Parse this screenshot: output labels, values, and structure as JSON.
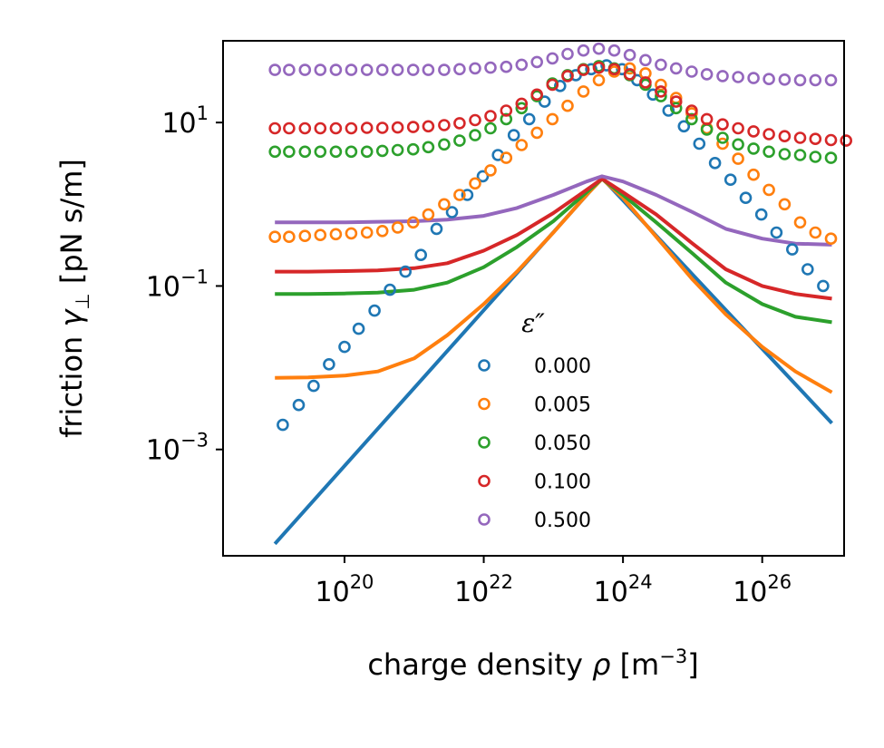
{
  "chart_data": {
    "type": "scatter",
    "xlabel_text": "charge density ",
    "xlabel_sym": "ρ",
    "xlabel_unit": " [m",
    "xlabel_unit_exp": "−3",
    "xlabel_unit_end": "]",
    "ylabel_text": "friction ",
    "ylabel_sym": "γ",
    "ylabel_sub": "⊥",
    "ylabel_unit": " [pN s/m]",
    "xscale": "log",
    "yscale": "log",
    "xlim": [
      1.8e+18,
      1.5e+27
    ],
    "ylim": [
      5e-05,
      100
    ],
    "x_ticks": [
      {
        "value": 1e+20,
        "base": "10",
        "exp": "20"
      },
      {
        "value": 1e+22,
        "base": "10",
        "exp": "22"
      },
      {
        "value": 1e+24,
        "base": "10",
        "exp": "24"
      },
      {
        "value": 1e+26,
        "base": "10",
        "exp": "26"
      }
    ],
    "y_ticks": [
      {
        "value": 0.001,
        "base": "10",
        "exp": "−3"
      },
      {
        "value": 0.1,
        "base": "10",
        "exp": "−1"
      },
      {
        "value": 10,
        "base": "10",
        "exp": "1"
      }
    ],
    "legend": {
      "title": "ε″",
      "placement": "lower-center"
    },
    "grid": false,
    "series": [
      {
        "name": "0.000",
        "color": "#1f77b4",
        "line": {
          "x": [
            1e+19,
            5e+23,
            1e+27
          ],
          "y": [
            7e-05,
            2.1,
            0.0021
          ]
        },
        "markers": {
          "x": [
            1.3e+19,
            2.2e+19,
            3.6e+19,
            6e+19,
            1e+20,
            1.6e+20,
            2.7e+20,
            4.5e+20,
            7.5e+20,
            1.25e+21,
            2.1e+21,
            3.5e+21,
            5.8e+21,
            9.7e+21,
            1.6e+22,
            2.7e+22,
            4.5e+22,
            7.5e+22,
            1.25e+23,
            2.1e+23,
            3.5e+23,
            5.8e+23,
            9.7e+23,
            1.6e+24,
            2.7e+24,
            4.5e+24,
            7.5e+24,
            1.25e+25,
            2.1e+25,
            3.5e+25,
            5.8e+25,
            9.7e+25,
            1.6e+26,
            2.7e+26,
            4.5e+26,
            7.5e+26
          ],
          "y": [
            0.002,
            0.0035,
            0.006,
            0.011,
            0.018,
            0.03,
            0.05,
            0.09,
            0.15,
            0.24,
            0.5,
            0.8,
            1.3,
            2.2,
            4,
            7,
            11,
            18,
            28,
            38,
            45,
            50,
            45,
            33,
            22,
            14,
            9,
            5.5,
            3.2,
            2,
            1.2,
            0.75,
            0.45,
            0.28,
            0.16,
            0.1
          ]
        }
      },
      {
        "name": "0.005",
        "color": "#ff7f0e",
        "line": {
          "x": [
            1e+19,
            3e+19,
            1e+20,
            3e+20,
            1e+21,
            3e+21,
            1e+22,
            3e+22,
            1e+23,
            3e+23,
            5e+23,
            1e+24,
            3e+24,
            1e+25,
            3e+25,
            1e+26,
            3e+26,
            1e+27
          ],
          "y": [
            0.0075,
            0.0076,
            0.008,
            0.009,
            0.013,
            0.025,
            0.06,
            0.15,
            0.45,
            1.3,
            2.05,
            1.2,
            0.4,
            0.12,
            0.045,
            0.018,
            0.009,
            0.005
          ]
        },
        "markers": {
          "x": [
            1e+19,
            1.6e+19,
            2.7e+19,
            4.5e+19,
            7.5e+19,
            1.25e+20,
            2.1e+20,
            3.5e+20,
            5.8e+20,
            9.7e+20,
            1.6e+21,
            2.7e+21,
            4.5e+21,
            7.5e+21,
            1.25e+22,
            2.1e+22,
            3.5e+22,
            5.8e+22,
            9.7e+22,
            1.6e+23,
            2.7e+23,
            4.5e+23,
            7.5e+23,
            1.25e+24,
            2.1e+24,
            3.5e+24,
            5.8e+24,
            9.7e+24,
            1.6e+25,
            2.7e+25,
            4.5e+25,
            7.5e+25,
            1.25e+26,
            2.1e+26,
            3.5e+26,
            5.8e+26,
            9.7e+26
          ],
          "y": [
            0.4,
            0.4,
            0.41,
            0.42,
            0.43,
            0.44,
            0.45,
            0.47,
            0.52,
            0.6,
            0.75,
            1,
            1.3,
            1.8,
            2.6,
            3.7,
            5.3,
            7.5,
            11,
            16,
            24,
            33,
            42,
            46,
            40,
            29,
            20,
            13,
            8.5,
            5.5,
            3.6,
            2.3,
            1.5,
            1,
            0.6,
            0.45,
            0.38
          ]
        }
      },
      {
        "name": "0.050",
        "color": "#2ca02c",
        "line": {
          "x": [
            1e+19,
            3e+19,
            1e+20,
            3e+20,
            1e+21,
            3e+21,
            1e+22,
            3e+22,
            1e+23,
            3e+23,
            5e+23,
            1e+24,
            3e+24,
            1e+25,
            3e+25,
            1e+26,
            3e+26,
            1e+27
          ],
          "y": [
            0.08,
            0.08,
            0.081,
            0.083,
            0.09,
            0.11,
            0.17,
            0.3,
            0.62,
            1.4,
            2.05,
            1.3,
            0.6,
            0.25,
            0.11,
            0.06,
            0.042,
            0.036
          ]
        },
        "markers": {
          "x": [
            1e+19,
            1.6e+19,
            2.7e+19,
            4.5e+19,
            7.5e+19,
            1.25e+20,
            2.1e+20,
            3.5e+20,
            5.8e+20,
            9.7e+20,
            1.6e+21,
            2.7e+21,
            4.5e+21,
            7.5e+21,
            1.25e+22,
            2.1e+22,
            3.5e+22,
            5.8e+22,
            9.7e+22,
            1.6e+23,
            2.7e+23,
            4.5e+23,
            7.5e+23,
            1.25e+24,
            2.1e+24,
            3.5e+24,
            5.8e+24,
            9.7e+24,
            1.6e+25,
            2.7e+25,
            4.5e+25,
            7.5e+25,
            1.25e+26,
            2.1e+26,
            3.5e+26,
            5.8e+26,
            9.7e+26
          ],
          "y": [
            4.4,
            4.4,
            4.4,
            4.4,
            4.4,
            4.4,
            4.4,
            4.5,
            4.6,
            4.7,
            5,
            5.4,
            6,
            7,
            8.5,
            11,
            15,
            21,
            30,
            38,
            45,
            49,
            46,
            38,
            29,
            21,
            15,
            11,
            8.2,
            6.5,
            5.4,
            4.8,
            4.4,
            4.1,
            4,
            3.8,
            3.7
          ]
        }
      },
      {
        "name": "0.100",
        "color": "#d62728",
        "line": {
          "x": [
            1e+19,
            3e+19,
            1e+20,
            3e+20,
            1e+21,
            3e+21,
            1e+22,
            3e+22,
            1e+23,
            3e+23,
            5e+23,
            1e+24,
            3e+24,
            1e+25,
            3e+25,
            1e+26,
            3e+26,
            1e+27
          ],
          "y": [
            0.15,
            0.15,
            0.152,
            0.155,
            0.165,
            0.19,
            0.27,
            0.42,
            0.78,
            1.5,
            2.05,
            1.4,
            0.75,
            0.33,
            0.16,
            0.1,
            0.08,
            0.07
          ]
        },
        "markers": {
          "x": [
            1e+19,
            1.6e+19,
            2.7e+19,
            4.5e+19,
            7.5e+19,
            1.25e+20,
            2.1e+20,
            3.5e+20,
            5.8e+20,
            9.7e+20,
            1.6e+21,
            2.7e+21,
            4.5e+21,
            7.5e+21,
            1.25e+22,
            2.1e+22,
            3.5e+22,
            5.8e+22,
            9.7e+22,
            1.6e+23,
            2.7e+23,
            4.5e+23,
            7.5e+23,
            1.25e+24,
            2.1e+24,
            3.5e+24,
            5.8e+24,
            9.7e+24,
            1.6e+25,
            2.7e+25,
            4.5e+25,
            7.5e+25,
            1.25e+26,
            2.1e+26,
            3.5e+26,
            5.8e+26,
            9.7e+26,
            1.6e+27
          ],
          "y": [
            8.5,
            8.5,
            8.5,
            8.5,
            8.5,
            8.5,
            8.6,
            8.6,
            8.7,
            8.8,
            9,
            9.3,
            9.8,
            10.7,
            12,
            14,
            17,
            22,
            29,
            37,
            44,
            47,
            45,
            39,
            31,
            24,
            18,
            14,
            11,
            9.5,
            8.5,
            7.8,
            7.2,
            6.8,
            6.5,
            6.3,
            6.1,
            6
          ]
        }
      },
      {
        "name": "0.500",
        "color": "#9467bd",
        "line": {
          "x": [
            1e+19,
            3e+19,
            1e+20,
            3e+20,
            1e+21,
            3e+21,
            1e+22,
            3e+22,
            1e+23,
            3e+23,
            5e+23,
            1e+24,
            3e+24,
            1e+25,
            3e+25,
            1e+26,
            3e+26,
            1e+27
          ],
          "y": [
            0.6,
            0.6,
            0.6,
            0.61,
            0.62,
            0.65,
            0.72,
            0.9,
            1.3,
            1.9,
            2.2,
            1.9,
            1.3,
            0.8,
            0.5,
            0.38,
            0.33,
            0.32
          ]
        },
        "markers": {
          "x": [
            1e+19,
            1.6e+19,
            2.7e+19,
            4.5e+19,
            7.5e+19,
            1.25e+20,
            2.1e+20,
            3.5e+20,
            5.8e+20,
            9.7e+20,
            1.6e+21,
            2.7e+21,
            4.5e+21,
            7.5e+21,
            1.25e+22,
            2.1e+22,
            3.5e+22,
            5.8e+22,
            9.7e+22,
            1.6e+23,
            2.7e+23,
            4.5e+23,
            7.5e+23,
            1.25e+24,
            2.1e+24,
            3.5e+24,
            5.8e+24,
            9.7e+24,
            1.6e+25,
            2.7e+25,
            4.5e+25,
            7.5e+25,
            1.25e+26,
            2.1e+26,
            3.5e+26,
            5.8e+26,
            9.7e+26
          ],
          "y": [
            44,
            44,
            44,
            44,
            44,
            44,
            44,
            44,
            44,
            44,
            44,
            44,
            45,
            46,
            47,
            48,
            51,
            55,
            61,
            69,
            76,
            80,
            76,
            67,
            58,
            51,
            46,
            42,
            39,
            37,
            36,
            35,
            34,
            33.5,
            33,
            33,
            33
          ]
        }
      }
    ]
  }
}
